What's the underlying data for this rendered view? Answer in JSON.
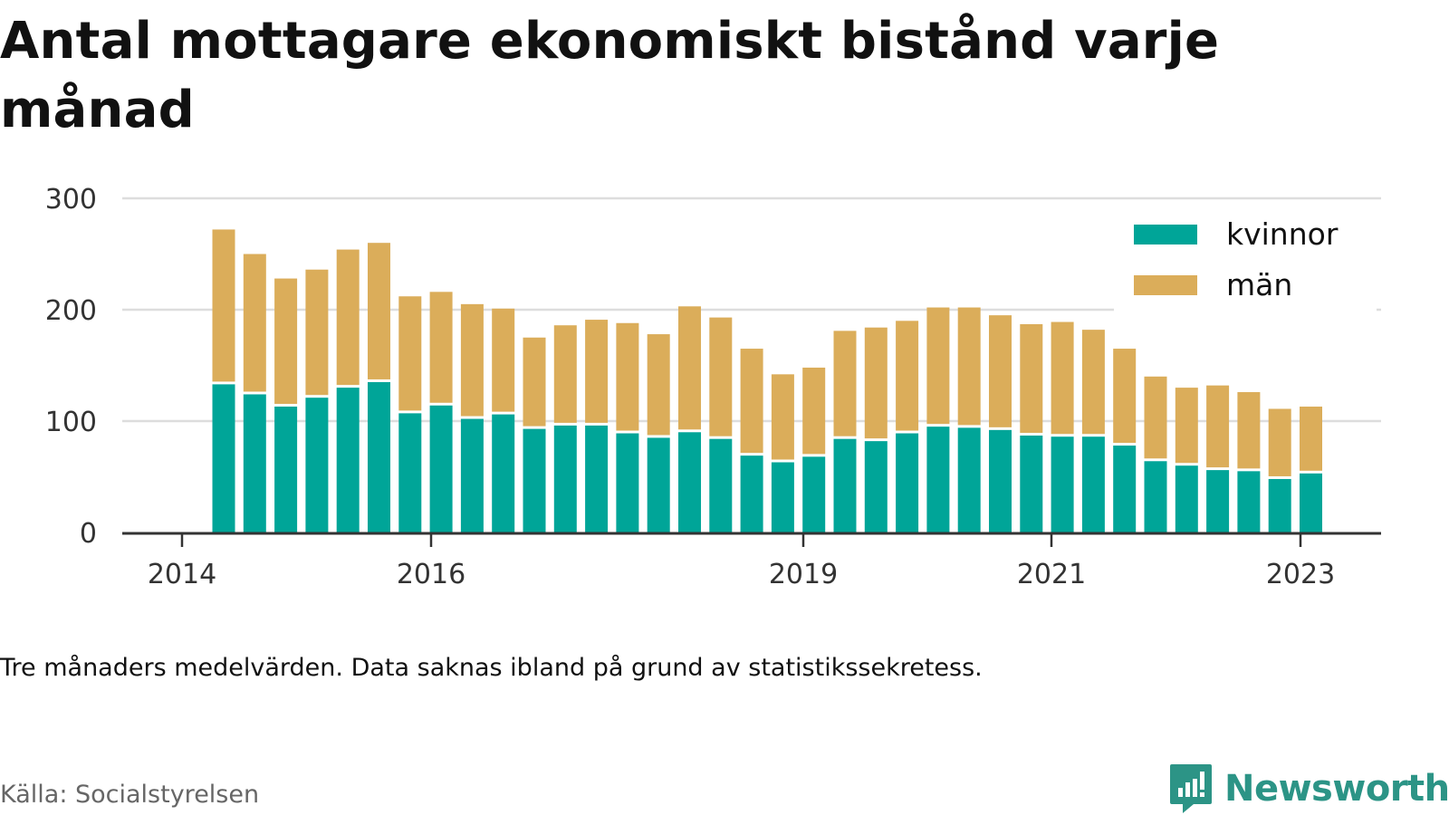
{
  "title": "Antal mottagare ekonomiskt bistånd varje månad",
  "note": "Tre månaders medelvärden. Data saknas ibland på grund av statistikssekretess.",
  "source": "Källa: Socialstyrelsen",
  "brand": "Newsworthy",
  "colors": {
    "kvinnor": "#00a598",
    "man": "#dbad5a",
    "grid": "#dddddd",
    "axis": "#333333",
    "brand": "#2c9486"
  },
  "chart_data": {
    "type": "bar",
    "stacked": true,
    "y_ticks": [
      "0",
      "100",
      "200",
      "300"
    ],
    "ylim": [
      0,
      300
    ],
    "x_ticks": [
      "2014",
      "2016",
      "2019",
      "2021",
      "2023"
    ],
    "legend_position": "top-right",
    "grid": true,
    "series": [
      {
        "name": "kvinnor",
        "values": [
          133,
          124,
          113,
          121,
          130,
          135,
          107,
          114,
          102,
          106,
          93,
          96,
          96,
          89,
          85,
          90,
          84,
          69,
          63,
          68,
          84,
          82,
          89,
          95,
          94,
          92,
          87,
          86,
          86,
          78,
          64,
          60,
          56,
          55,
          48,
          53
        ]
      },
      {
        "name": "män",
        "values": [
          139,
          126,
          115,
          115,
          124,
          125,
          105,
          102,
          103,
          95,
          82,
          90,
          95,
          99,
          93,
          113,
          109,
          96,
          79,
          80,
          97,
          102,
          101,
          107,
          108,
          103,
          100,
          103,
          96,
          87,
          76,
          70,
          76,
          71,
          63,
          60
        ]
      }
    ]
  }
}
